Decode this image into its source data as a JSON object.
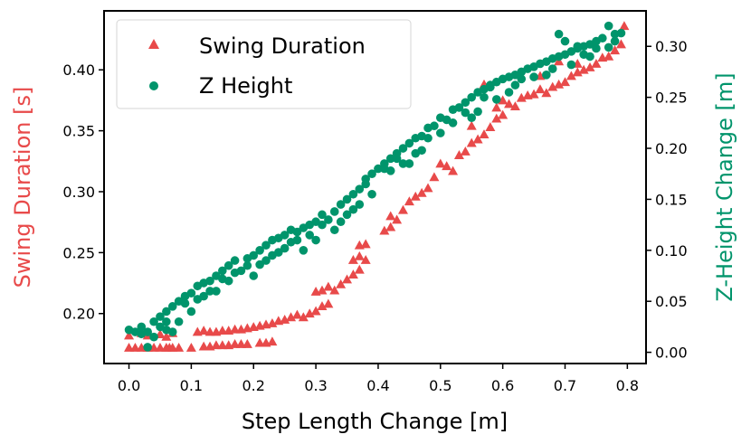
{
  "chart_data": {
    "type": "scatter",
    "title": "",
    "xlabel": "Step Length Change [m]",
    "ylabel_left": "Swing Duration [s]",
    "ylabel_right": "Z-Height Change [m]",
    "xlim": [
      -0.04,
      0.83
    ],
    "ylim_left": [
      0.159,
      0.4484
    ],
    "ylim_right": [
      -0.011,
      0.3348
    ],
    "x_ticks": [
      0.0,
      0.1,
      0.2,
      0.3,
      0.4,
      0.5,
      0.6,
      0.7,
      0.8
    ],
    "y_left_ticks": [
      0.2,
      0.25,
      0.3,
      0.35,
      0.4
    ],
    "y_right_ticks": [
      0.0,
      0.05,
      0.1,
      0.15,
      0.2,
      0.25,
      0.3
    ],
    "x_tick_labels": [
      "0.0",
      "0.1",
      "0.2",
      "0.3",
      "0.4",
      "0.5",
      "0.6",
      "0.7",
      "0.8"
    ],
    "y_left_tick_labels": [
      "0.20",
      "0.25",
      "0.30",
      "0.35",
      "0.40"
    ],
    "y_right_tick_labels": [
      "0.00",
      "0.05",
      "0.10",
      "0.15",
      "0.20",
      "0.25",
      "0.30"
    ],
    "grid": false,
    "legend_position": "top-left",
    "series": [
      {
        "name": "Swing Duration",
        "axis": "left",
        "marker": "triangle",
        "color": "#e84a4a",
        "points": [
          [
            0.0,
            0.172
          ],
          [
            0.01,
            0.172
          ],
          [
            0.02,
            0.172
          ],
          [
            0.03,
            0.172
          ],
          [
            0.04,
            0.172
          ],
          [
            0.05,
            0.172
          ],
          [
            0.06,
            0.172
          ],
          [
            0.065,
            0.172
          ],
          [
            0.07,
            0.172
          ],
          [
            0.08,
            0.172
          ],
          [
            0.1,
            0.172
          ],
          [
            0.12,
            0.173
          ],
          [
            0.13,
            0.173
          ],
          [
            0.14,
            0.174
          ],
          [
            0.15,
            0.174
          ],
          [
            0.16,
            0.174
          ],
          [
            0.17,
            0.175
          ],
          [
            0.18,
            0.175
          ],
          [
            0.19,
            0.175
          ],
          [
            0.21,
            0.176
          ],
          [
            0.22,
            0.176
          ],
          [
            0.23,
            0.177
          ],
          [
            0.0,
            0.182
          ],
          [
            0.02,
            0.184
          ],
          [
            0.03,
            0.182
          ],
          [
            0.05,
            0.183
          ],
          [
            0.06,
            0.181
          ],
          [
            0.07,
            0.184
          ],
          [
            0.11,
            0.185
          ],
          [
            0.12,
            0.186
          ],
          [
            0.13,
            0.185
          ],
          [
            0.14,
            0.185
          ],
          [
            0.15,
            0.186
          ],
          [
            0.16,
            0.186
          ],
          [
            0.17,
            0.187
          ],
          [
            0.18,
            0.187
          ],
          [
            0.19,
            0.188
          ],
          [
            0.2,
            0.189
          ],
          [
            0.21,
            0.19
          ],
          [
            0.22,
            0.191
          ],
          [
            0.23,
            0.192
          ],
          [
            0.24,
            0.194
          ],
          [
            0.25,
            0.195
          ],
          [
            0.26,
            0.197
          ],
          [
            0.27,
            0.199
          ],
          [
            0.28,
            0.197
          ],
          [
            0.29,
            0.2
          ],
          [
            0.3,
            0.202
          ],
          [
            0.31,
            0.206
          ],
          [
            0.32,
            0.208
          ],
          [
            0.3,
            0.218
          ],
          [
            0.31,
            0.219
          ],
          [
            0.32,
            0.222
          ],
          [
            0.33,
            0.219
          ],
          [
            0.34,
            0.224
          ],
          [
            0.35,
            0.228
          ],
          [
            0.36,
            0.232
          ],
          [
            0.37,
            0.236
          ],
          [
            0.36,
            0.244
          ],
          [
            0.37,
            0.247
          ],
          [
            0.38,
            0.244
          ],
          [
            0.37,
            0.256
          ],
          [
            0.38,
            0.257
          ],
          [
            0.41,
            0.268
          ],
          [
            0.42,
            0.271
          ],
          [
            0.42,
            0.28
          ],
          [
            0.43,
            0.277
          ],
          [
            0.44,
            0.285
          ],
          [
            0.45,
            0.292
          ],
          [
            0.46,
            0.296
          ],
          [
            0.47,
            0.299
          ],
          [
            0.48,
            0.303
          ],
          [
            0.49,
            0.312
          ],
          [
            0.5,
            0.323
          ],
          [
            0.51,
            0.321
          ],
          [
            0.52,
            0.317
          ],
          [
            0.53,
            0.33
          ],
          [
            0.54,
            0.333
          ],
          [
            0.55,
            0.34
          ],
          [
            0.56,
            0.343
          ],
          [
            0.55,
            0.354
          ],
          [
            0.57,
            0.347
          ],
          [
            0.58,
            0.353
          ],
          [
            0.59,
            0.36
          ],
          [
            0.6,
            0.363
          ],
          [
            0.59,
            0.369
          ],
          [
            0.61,
            0.372
          ],
          [
            0.62,
            0.37
          ],
          [
            0.63,
            0.377
          ],
          [
            0.64,
            0.379
          ],
          [
            0.65,
            0.38
          ],
          [
            0.66,
            0.384
          ],
          [
            0.67,
            0.381
          ],
          [
            0.68,
            0.386
          ],
          [
            0.69,
            0.388
          ],
          [
            0.7,
            0.39
          ],
          [
            0.71,
            0.395
          ],
          [
            0.72,
            0.398
          ],
          [
            0.73,
            0.4
          ],
          [
            0.74,
            0.402
          ],
          [
            0.75,
            0.405
          ],
          [
            0.76,
            0.41
          ],
          [
            0.77,
            0.411
          ],
          [
            0.78,
            0.416
          ],
          [
            0.79,
            0.421
          ],
          [
            0.795,
            0.436
          ],
          [
            0.69,
            0.407
          ],
          [
            0.72,
            0.405
          ],
          [
            0.66,
            0.395
          ],
          [
            0.6,
            0.375
          ],
          [
            0.57,
            0.388
          ]
        ]
      },
      {
        "name": "Z Height",
        "axis": "right",
        "marker": "circle",
        "color": "#00946b",
        "points": [
          [
            0.0,
            0.022
          ],
          [
            0.01,
            0.02
          ],
          [
            0.02,
            0.025
          ],
          [
            0.03,
            0.005
          ],
          [
            0.03,
            0.02
          ],
          [
            0.04,
            0.03
          ],
          [
            0.05,
            0.035
          ],
          [
            0.05,
            0.025
          ],
          [
            0.06,
            0.04
          ],
          [
            0.06,
            0.03
          ],
          [
            0.07,
            0.045
          ],
          [
            0.07,
            0.02
          ],
          [
            0.08,
            0.05
          ],
          [
            0.08,
            0.03
          ],
          [
            0.09,
            0.055
          ],
          [
            0.1,
            0.058
          ],
          [
            0.1,
            0.04
          ],
          [
            0.11,
            0.065
          ],
          [
            0.12,
            0.055
          ],
          [
            0.12,
            0.068
          ],
          [
            0.13,
            0.07
          ],
          [
            0.14,
            0.075
          ],
          [
            0.14,
            0.06
          ],
          [
            0.15,
            0.08
          ],
          [
            0.16,
            0.085
          ],
          [
            0.16,
            0.07
          ],
          [
            0.17,
            0.09
          ],
          [
            0.18,
            0.08
          ],
          [
            0.19,
            0.085
          ],
          [
            0.2,
            0.095
          ],
          [
            0.2,
            0.075
          ],
          [
            0.21,
            0.1
          ],
          [
            0.22,
            0.105
          ],
          [
            0.22,
            0.09
          ],
          [
            0.23,
            0.11
          ],
          [
            0.23,
            0.095
          ],
          [
            0.24,
            0.112
          ],
          [
            0.25,
            0.115
          ],
          [
            0.26,
            0.12
          ],
          [
            0.27,
            0.118
          ],
          [
            0.28,
            0.122
          ],
          [
            0.28,
            0.1
          ],
          [
            0.29,
            0.125
          ],
          [
            0.3,
            0.128
          ],
          [
            0.3,
            0.11
          ],
          [
            0.31,
            0.135
          ],
          [
            0.32,
            0.13
          ],
          [
            0.33,
            0.138
          ],
          [
            0.34,
            0.145
          ],
          [
            0.35,
            0.15
          ],
          [
            0.35,
            0.135
          ],
          [
            0.36,
            0.155
          ],
          [
            0.37,
            0.16
          ],
          [
            0.37,
            0.145
          ],
          [
            0.38,
            0.17
          ],
          [
            0.39,
            0.175
          ],
          [
            0.4,
            0.18
          ],
          [
            0.41,
            0.185
          ],
          [
            0.42,
            0.19
          ],
          [
            0.43,
            0.195
          ],
          [
            0.44,
            0.2
          ],
          [
            0.45,
            0.205
          ],
          [
            0.45,
            0.185
          ],
          [
            0.46,
            0.21
          ],
          [
            0.47,
            0.212
          ],
          [
            0.48,
            0.22
          ],
          [
            0.49,
            0.222
          ],
          [
            0.5,
            0.23
          ],
          [
            0.51,
            0.228
          ],
          [
            0.52,
            0.238
          ],
          [
            0.53,
            0.24
          ],
          [
            0.54,
            0.245
          ],
          [
            0.55,
            0.25
          ],
          [
            0.55,
            0.23
          ],
          [
            0.56,
            0.255
          ],
          [
            0.57,
            0.258
          ],
          [
            0.58,
            0.262
          ],
          [
            0.59,
            0.265
          ],
          [
            0.6,
            0.268
          ],
          [
            0.61,
            0.27
          ],
          [
            0.62,
            0.272
          ],
          [
            0.63,
            0.275
          ],
          [
            0.64,
            0.278
          ],
          [
            0.65,
            0.28
          ],
          [
            0.66,
            0.283
          ],
          [
            0.67,
            0.285
          ],
          [
            0.68,
            0.288
          ],
          [
            0.69,
            0.29
          ],
          [
            0.7,
            0.292
          ],
          [
            0.71,
            0.295
          ],
          [
            0.72,
            0.298
          ],
          [
            0.73,
            0.3
          ],
          [
            0.74,
            0.302
          ],
          [
            0.75,
            0.305
          ],
          [
            0.76,
            0.308
          ],
          [
            0.77,
            0.32
          ],
          [
            0.78,
            0.312
          ],
          [
            0.79,
            0.313
          ],
          [
            0.77,
            0.299
          ],
          [
            0.69,
            0.312
          ],
          [
            0.7,
            0.305
          ],
          [
            0.72,
            0.3
          ],
          [
            0.74,
            0.29
          ],
          [
            0.61,
            0.255
          ],
          [
            0.58,
            0.26
          ],
          [
            0.56,
            0.236
          ],
          [
            0.47,
            0.198
          ],
          [
            0.43,
            0.19
          ],
          [
            0.41,
            0.18
          ],
          [
            0.38,
            0.165
          ],
          [
            0.33,
            0.12
          ],
          [
            0.27,
            0.11
          ],
          [
            0.25,
            0.102
          ],
          [
            0.19,
            0.092
          ],
          [
            0.15,
            0.072
          ],
          [
            0.09,
            0.048
          ],
          [
            0.04,
            0.015
          ],
          [
            0.02,
            0.018
          ],
          [
            0.06,
            0.022
          ],
          [
            0.11,
            0.052
          ],
          [
            0.13,
            0.06
          ],
          [
            0.17,
            0.078
          ],
          [
            0.21,
            0.086
          ],
          [
            0.24,
            0.098
          ],
          [
            0.26,
            0.108
          ],
          [
            0.29,
            0.115
          ],
          [
            0.31,
            0.125
          ],
          [
            0.34,
            0.128
          ],
          [
            0.36,
            0.14
          ],
          [
            0.39,
            0.155
          ],
          [
            0.42,
            0.178
          ],
          [
            0.44,
            0.185
          ],
          [
            0.46,
            0.195
          ],
          [
            0.48,
            0.21
          ],
          [
            0.5,
            0.215
          ],
          [
            0.52,
            0.225
          ],
          [
            0.54,
            0.235
          ],
          [
            0.57,
            0.25
          ],
          [
            0.59,
            0.248
          ],
          [
            0.62,
            0.262
          ],
          [
            0.63,
            0.268
          ],
          [
            0.65,
            0.27
          ],
          [
            0.67,
            0.272
          ],
          [
            0.68,
            0.278
          ],
          [
            0.71,
            0.282
          ],
          [
            0.73,
            0.292
          ],
          [
            0.75,
            0.298
          ],
          [
            0.78,
            0.305
          ]
        ]
      }
    ]
  }
}
